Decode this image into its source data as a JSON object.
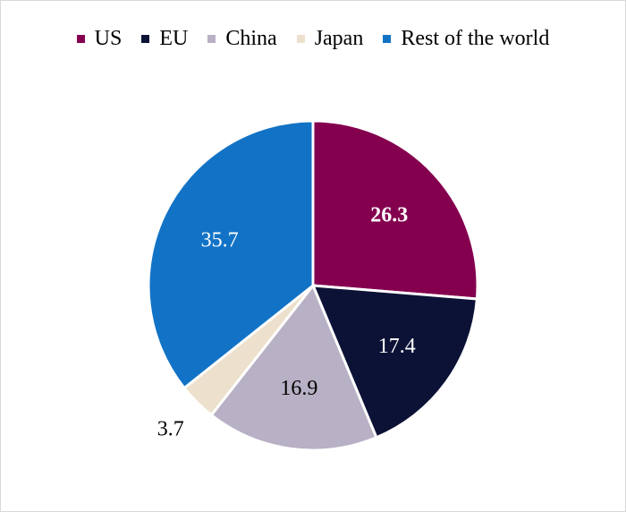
{
  "chart_data": {
    "type": "pie",
    "title": "",
    "legend_position": "top",
    "start_angle_deg": 0,
    "direction": "clockwise",
    "slices": [
      {
        "name": "US",
        "value": 26.3,
        "label": "26.3",
        "color": "#84004f",
        "label_color": "#ffffff",
        "label_bold": true,
        "label_place": "inside"
      },
      {
        "name": "EU",
        "value": 17.4,
        "label": "17.4",
        "color": "#0c1236",
        "label_color": "#ffffff",
        "label_bold": false,
        "label_place": "inside"
      },
      {
        "name": "China",
        "value": 16.9,
        "label": "16.9",
        "color": "#b8b0c4",
        "label_color": "#000000",
        "label_bold": false,
        "label_place": "inside"
      },
      {
        "name": "Japan",
        "value": 3.7,
        "label": "3.7",
        "color": "#ede0cc",
        "label_color": "#000000",
        "label_bold": false,
        "label_place": "outside"
      },
      {
        "name": "Rest of the world",
        "value": 35.7,
        "label": "35.7",
        "color": "#1273c6",
        "label_color": "#ffffff",
        "label_bold": false,
        "label_place": "inside"
      }
    ]
  }
}
